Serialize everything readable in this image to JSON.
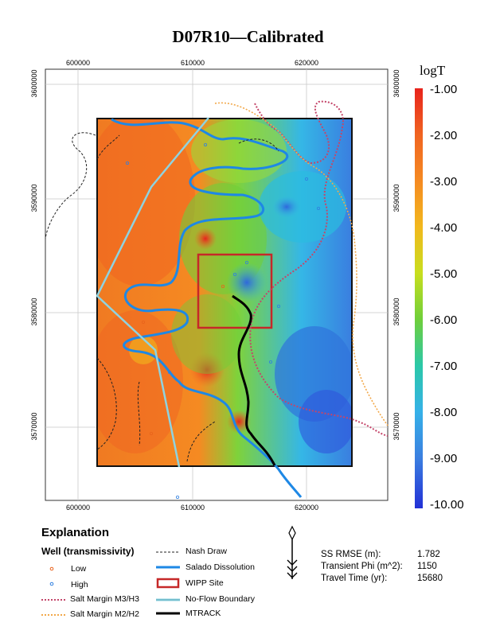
{
  "title": "D07R10—Calibrated",
  "x_ticks": [
    "600000",
    "610000",
    "620000"
  ],
  "y_ticks": [
    "3600000",
    "3590000",
    "3580000",
    "3570000"
  ],
  "colorbar": {
    "title": "logT",
    "labels": [
      "-1.00",
      "-2.00",
      "-3.00",
      "-4.00",
      "-5.00",
      "-6.00",
      "-7.00",
      "-8.00",
      "-9.00",
      "-10.00"
    ],
    "colors": [
      "#e8231c",
      "#f06421",
      "#f58a22",
      "#f2b81d",
      "#c8de1e",
      "#6fcf3a",
      "#2bc8a8",
      "#35b1e8",
      "#3b7fe0",
      "#2230d6"
    ]
  },
  "legend": {
    "explanation": "Explanation",
    "well_heading": "Well (transmissivity)",
    "low": "Low",
    "high": "High",
    "salt_m3h3": "Salt Margin M3/H3",
    "salt_m2h2": "Salt Margin M2/H2",
    "nash_draw": "Nash Draw",
    "salado": "Salado Dissolution",
    "wipp": "WIPP Site",
    "no_flow": "No-Flow Boundary",
    "mtrack": "MTRACK"
  },
  "stats": {
    "rmse_label": "SS RMSE (m):",
    "rmse_value": "1.782",
    "phi_label": "Transient Phi (m^2):",
    "phi_value": "1150",
    "travel_label": "Travel Time (yr):",
    "travel_value": "15680"
  },
  "north_arrow": "north-arrow-icon"
}
